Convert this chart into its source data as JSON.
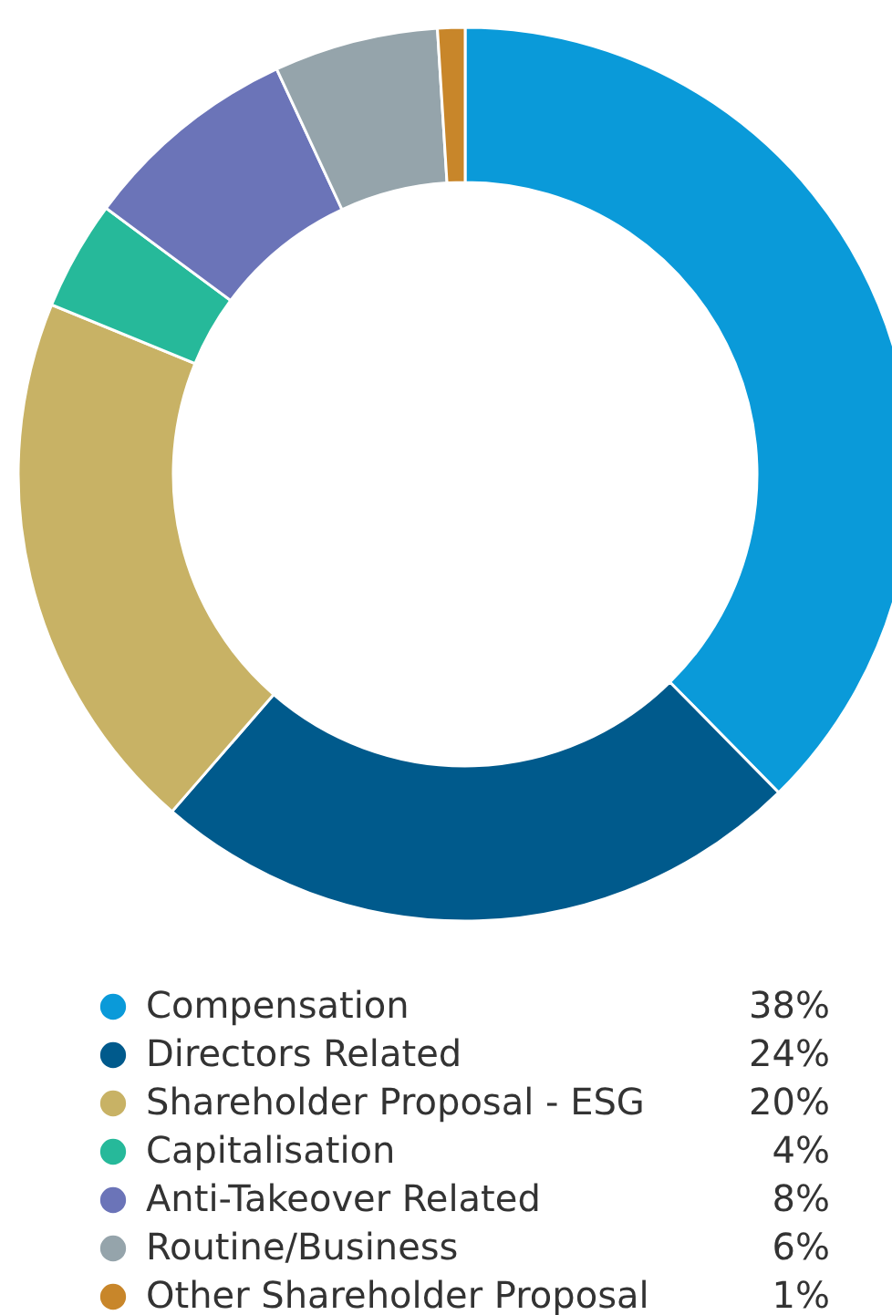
{
  "chart_data": {
    "type": "donut",
    "categories": [
      "Compensation",
      "Directors Related",
      "Shareholder Proposal - ESG",
      "Capitalisation",
      "Anti-Takeover Related",
      "Routine/Business",
      "Other Shareholder Proposal"
    ],
    "values": [
      38,
      24,
      20,
      4,
      8,
      6,
      1
    ],
    "value_labels": [
      "38%",
      "24%",
      "20%",
      "4%",
      "8%",
      "6%",
      "1%"
    ],
    "colors": [
      "#0a9ad9",
      "#005a8c",
      "#c8b265",
      "#26b99a",
      "#6b74b8",
      "#95a4ab",
      "#c8862a"
    ],
    "legend": "bottom"
  }
}
